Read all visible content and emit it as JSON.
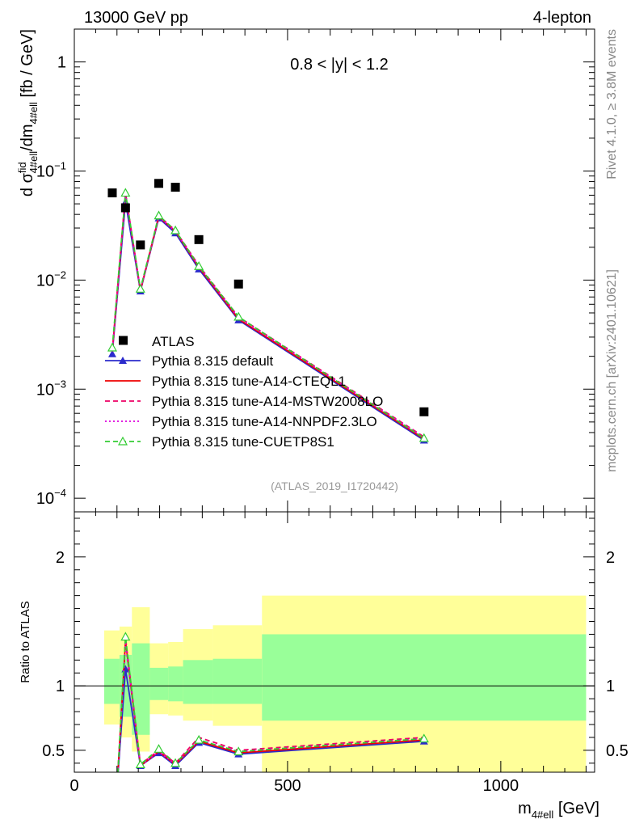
{
  "header": {
    "energy_label": "13000 GeV pp",
    "process_label": "4-lepton",
    "rivet_label": "Rivet 4.1.0, ≥ 3.8M events",
    "source_label": "mcplots.cern.ch [arXiv:2401.10621]"
  },
  "chart_data": [
    {
      "panel": "main",
      "type": "scatter",
      "title": "0.8 < |y| < 1.2",
      "watermark": "(ATLAS_2019_I1720442)",
      "ylabel_parts": [
        "d σ",
        "fid",
        "4#ell",
        "/dm",
        "4#ell",
        " [fb / GeV]"
      ],
      "yscale": "log",
      "ylim": [
        7.5e-05,
        2.0
      ],
      "xlim": [
        0,
        1220
      ],
      "ytick_labels": [
        {
          "value": 1,
          "base": "1",
          "exp": ""
        },
        {
          "value": 0.1,
          "base": "10",
          "exp": "−1"
        },
        {
          "value": 0.01,
          "base": "10",
          "exp": "−2"
        },
        {
          "value": 0.001,
          "base": "10",
          "exp": "−3"
        },
        {
          "value": 0.0001,
          "base": "10",
          "exp": "−4"
        }
      ],
      "data": {
        "name": "ATLAS",
        "x": [
          89,
          120,
          155,
          198,
          237,
          292,
          385,
          820
        ],
        "y": [
          0.063,
          0.046,
          0.021,
          0.077,
          0.071,
          0.0235,
          0.0092,
          0.00062
        ]
      },
      "series": [
        {
          "name": "Pythia 8.315 default",
          "color": "#2b2bcc",
          "style": "solid",
          "marker": "filled-triangle",
          "x": [
            89,
            120,
            155,
            198,
            237,
            292,
            385,
            820
          ],
          "y": [
            0.0021,
            0.052,
            0.0079,
            0.037,
            0.027,
            0.0126,
            0.0043,
            0.00034
          ]
        },
        {
          "name": "Pythia 8.315 tune-A14-CTEQL1",
          "color": "#ee0000",
          "style": "solid",
          "marker": "none",
          "x": [
            89,
            120,
            155,
            198,
            237,
            292,
            385,
            820
          ],
          "y": [
            0.0022,
            0.062,
            0.008,
            0.038,
            0.028,
            0.0131,
            0.0044,
            0.00035
          ]
        },
        {
          "name": "Pythia 8.315 tune-A14-MSTW2008LO",
          "color": "#ee0066",
          "style": "dashed",
          "marker": "none",
          "x": [
            89,
            120,
            155,
            198,
            237,
            292,
            385,
            820
          ],
          "y": [
            0.0022,
            0.063,
            0.0081,
            0.039,
            0.0285,
            0.0136,
            0.0046,
            0.000365
          ]
        },
        {
          "name": "Pythia 8.315 tune-A14-NNPDF2.3LO",
          "color": "#dd00dd",
          "style": "dotted",
          "marker": "none",
          "x": [
            89,
            120,
            155,
            198,
            237,
            292,
            385,
            820
          ],
          "y": [
            0.0022,
            0.061,
            0.008,
            0.038,
            0.028,
            0.0133,
            0.0045,
            0.00036
          ]
        },
        {
          "name": "Pythia 8.315 tune-CUETP8S1",
          "color": "#33cc33",
          "style": "dashed",
          "marker": "open-triangle",
          "x": [
            89,
            120,
            155,
            198,
            237,
            292,
            385,
            820
          ],
          "y": [
            0.0024,
            0.063,
            0.0083,
            0.039,
            0.0285,
            0.0134,
            0.0046,
            0.000355
          ]
        }
      ]
    },
    {
      "panel": "ratio",
      "type": "line",
      "ylabel": "Ratio to ATLAS",
      "xlabel_parts": [
        "m",
        "4#ell",
        " [GeV]"
      ],
      "ylim": [
        0.33,
        2.35
      ],
      "xlim": [
        0,
        1220
      ],
      "xtick_labels": [
        "0",
        "500",
        "1000"
      ],
      "xticks": [
        0,
        500,
        1000
      ],
      "ytick_labels": [
        "0.5",
        "1",
        "2"
      ],
      "yticks": [
        0.5,
        1,
        2
      ],
      "bands": [
        {
          "x0": 70,
          "x1": 106,
          "y_lo": 0.7,
          "y_hi": 1.43,
          "g_lo": 0.86,
          "g_hi": 1.21
        },
        {
          "x0": 106,
          "x1": 135,
          "y_lo": 0.6,
          "y_hi": 1.46,
          "g_lo": 0.76,
          "g_hi": 1.24
        },
        {
          "x0": 135,
          "x1": 177,
          "y_lo": 0.49,
          "y_hi": 1.61,
          "g_lo": 0.62,
          "g_hi": 1.33
        },
        {
          "x0": 177,
          "x1": 220,
          "y_lo": 0.78,
          "y_hi": 1.33,
          "g_lo": 0.89,
          "g_hi": 1.14
        },
        {
          "x0": 220,
          "x1": 255,
          "y_lo": 0.77,
          "y_hi": 1.34,
          "g_lo": 0.88,
          "g_hi": 1.15
        },
        {
          "x0": 255,
          "x1": 325,
          "y_lo": 0.73,
          "y_hi": 1.44,
          "g_lo": 0.86,
          "g_hi": 1.2
        },
        {
          "x0": 325,
          "x1": 440,
          "y_lo": 0.69,
          "y_hi": 1.47,
          "g_lo": 0.86,
          "g_hi": 1.21
        },
        {
          "x0": 440,
          "x1": 1200,
          "y_lo": 0.33,
          "y_hi": 1.7,
          "g_lo": 0.73,
          "g_hi": 1.4
        }
      ],
      "series": [
        {
          "name": "Pythia 8.315 default",
          "x": [
            120,
            155,
            198,
            237,
            292,
            385,
            820
          ],
          "y": [
            1.13,
            0.38,
            0.48,
            0.38,
            0.56,
            0.47,
            0.57
          ]
        },
        {
          "name": "Pythia 8.315 tune-A14-CTEQL1",
          "x": [
            120,
            155,
            198,
            237,
            292,
            385,
            820
          ],
          "y": [
            1.35,
            0.38,
            0.49,
            0.39,
            0.57,
            0.48,
            0.58
          ]
        },
        {
          "name": "Pythia 8.315 tune-A14-MSTW2008LO",
          "x": [
            120,
            155,
            198,
            237,
            292,
            385,
            820
          ],
          "y": [
            1.37,
            0.39,
            0.5,
            0.4,
            0.6,
            0.5,
            0.6
          ]
        },
        {
          "name": "Pythia 8.315 tune-A14-NNPDF2.3LO",
          "x": [
            120,
            155,
            198,
            237,
            292,
            385,
            820
          ],
          "y": [
            1.33,
            0.38,
            0.49,
            0.39,
            0.58,
            0.49,
            0.59
          ]
        },
        {
          "name": "Pythia 8.315 tune-CUETP8S1",
          "x": [
            120,
            155,
            198,
            237,
            292,
            385,
            820
          ],
          "y": [
            1.38,
            0.39,
            0.51,
            0.4,
            0.58,
            0.49,
            0.59
          ]
        }
      ]
    }
  ]
}
